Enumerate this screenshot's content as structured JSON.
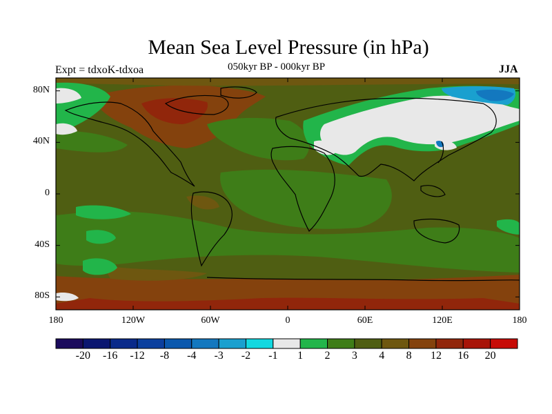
{
  "title": "Mean Sea Level Pressure (in hPa)",
  "subtitle": "050kyr BP - 000kyr BP",
  "left_label": "Expt = tdxoK-tdxoa",
  "right_label": "JJA",
  "map": {
    "projection": "cylindrical-equidistant",
    "lon_range": [
      -180,
      180
    ],
    "lat_range": [
      -90,
      90
    ],
    "lat_ticks": [
      {
        "value": 80,
        "label": "80N"
      },
      {
        "value": 40,
        "label": "40N"
      },
      {
        "value": 0,
        "label": "0"
      },
      {
        "value": -40,
        "label": "40S"
      },
      {
        "value": -80,
        "label": "80S"
      }
    ],
    "lon_ticks": [
      {
        "value": -180,
        "label": "180"
      },
      {
        "value": -120,
        "label": "120W"
      },
      {
        "value": -60,
        "label": "60W"
      },
      {
        "value": 0,
        "label": "0"
      },
      {
        "value": 60,
        "label": "60E"
      },
      {
        "value": 120,
        "label": "120E"
      },
      {
        "value": 180,
        "label": "180"
      }
    ],
    "background_color": "#4f5e12"
  },
  "colorbar": {
    "levels": [
      "-20",
      "-16",
      "-12",
      "-8",
      "-4",
      "-3",
      "-2",
      "-1",
      "1",
      "2",
      "3",
      "4",
      "8",
      "12",
      "16",
      "20"
    ],
    "colors": [
      "#1a0a5c",
      "#0b1670",
      "#0a2a8a",
      "#0b3f9e",
      "#0a58ad",
      "#1378bf",
      "#1aa0cf",
      "#12d8e0",
      "#e8e8e8",
      "#22b54a",
      "#3e7d18",
      "#4f5e12",
      "#6e5710",
      "#84420d",
      "#91260b",
      "#a81408",
      "#c70b06"
    ]
  }
}
